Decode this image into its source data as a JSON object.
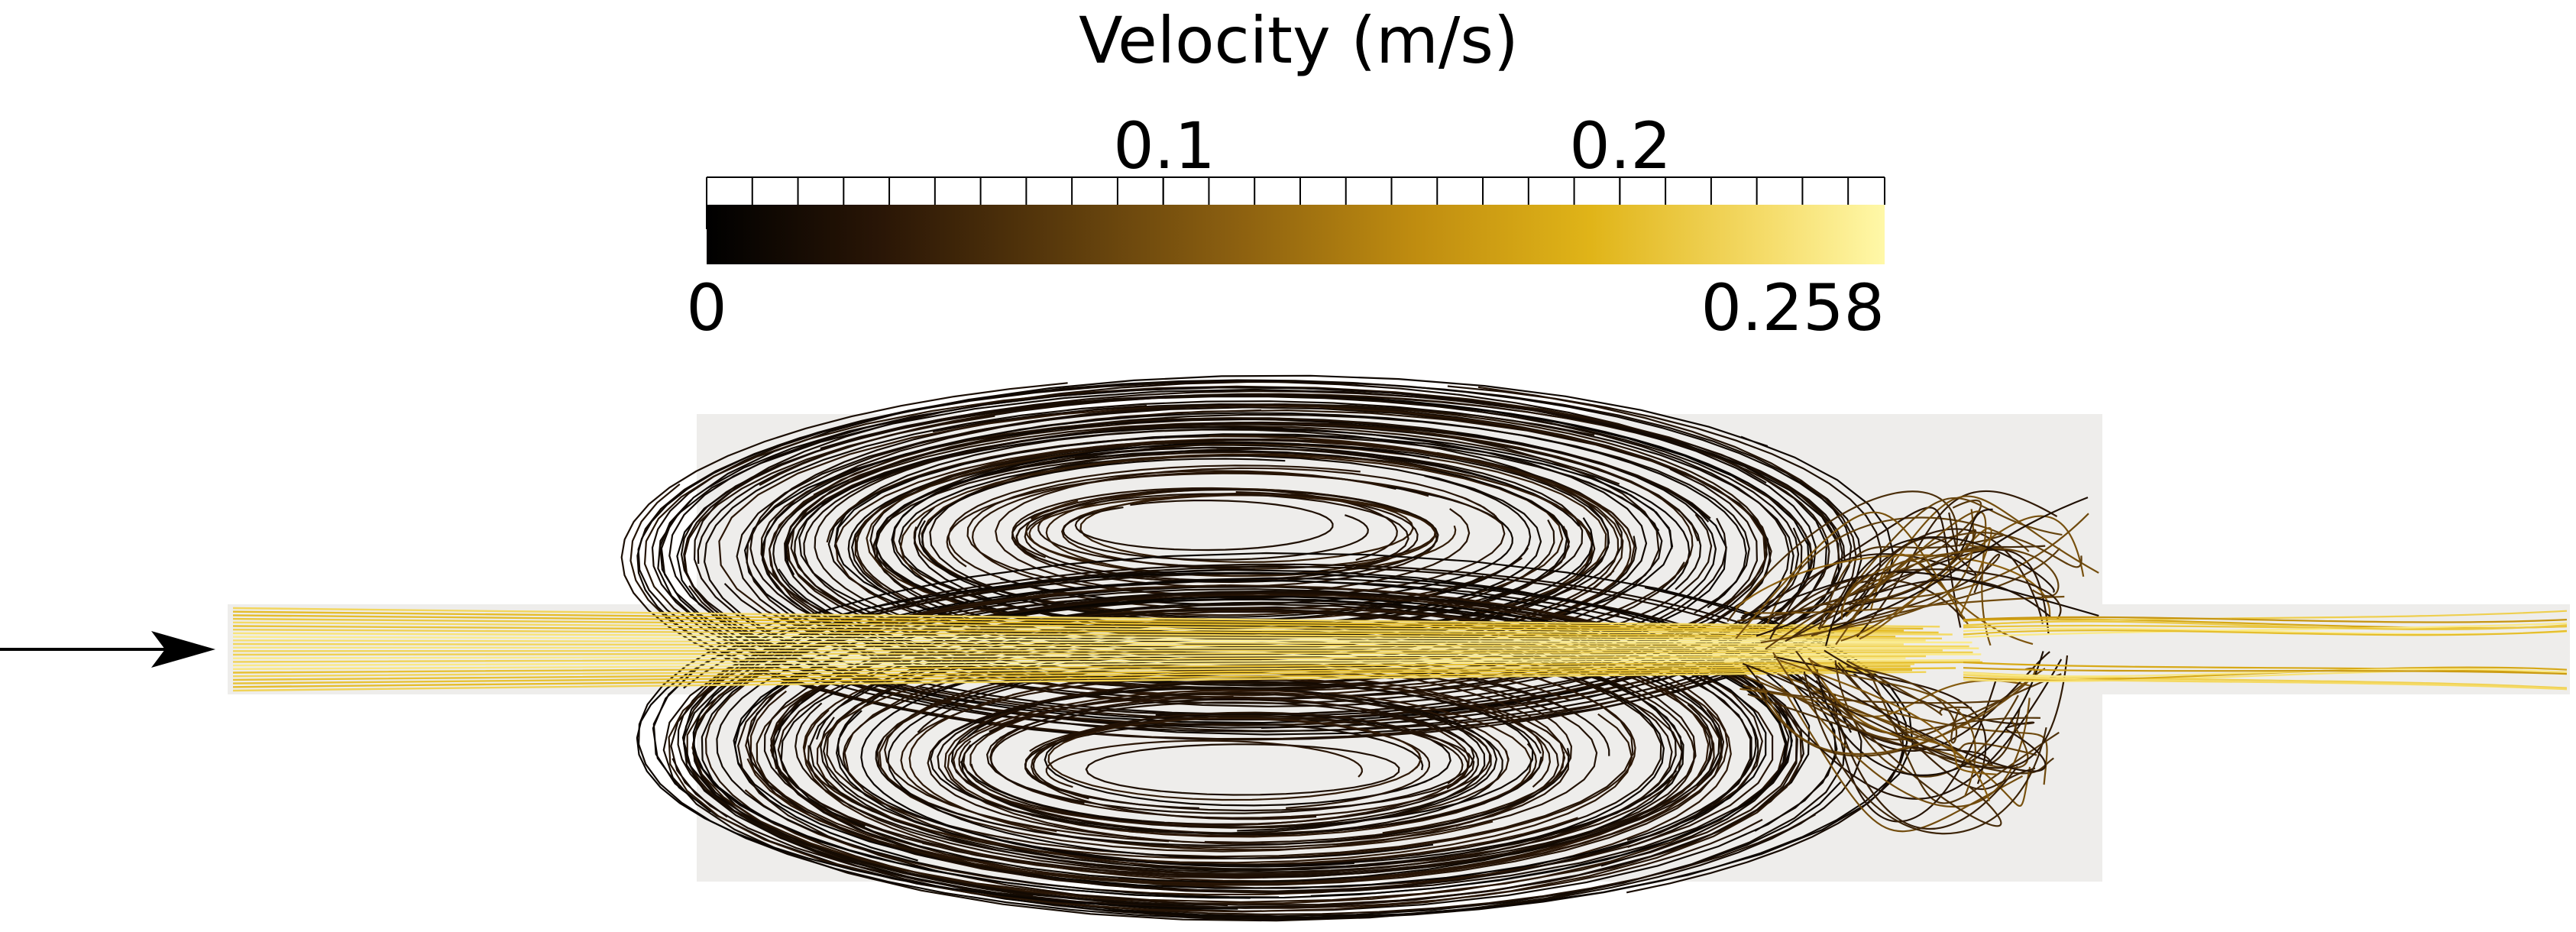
{
  "colorbar": {
    "title": "Velocity (m/s)",
    "min_label": "0",
    "max_label": "0.258",
    "tick_labels": [
      "0.1",
      "0.2"
    ],
    "range": [
      0,
      0.258
    ],
    "tick_values": [
      0.1,
      0.2
    ],
    "minor_tick_step": 0.01,
    "colormap_stops": [
      "#000000",
      "#2a1606",
      "#5a3a0c",
      "#8c6010",
      "#bf8c10",
      "#e0b418",
      "#f5dc6a",
      "#fff8a8"
    ]
  },
  "colors": {
    "domain_background": "#eeedeb",
    "inlet_arrow": "#000000"
  }
}
